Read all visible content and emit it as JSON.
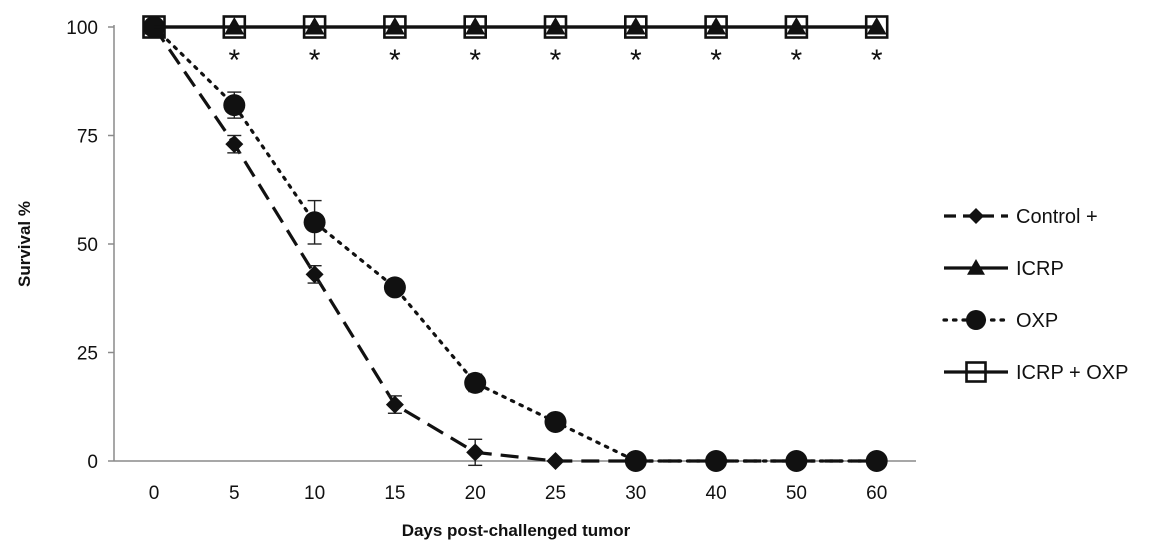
{
  "chart_data": {
    "type": "line",
    "title": "",
    "xlabel": "Days post-challenged tumor",
    "ylabel": "Survival %",
    "categories": [
      "0",
      "5",
      "10",
      "15",
      "20",
      "25",
      "30",
      "40",
      "50",
      "60"
    ],
    "ylim": [
      0,
      100
    ],
    "yticks": [
      "0",
      "25",
      "50",
      "75",
      "100"
    ],
    "grid": false,
    "legend_position": "right",
    "annotation_symbol": "*",
    "annotation_categories": [
      "5",
      "10",
      "15",
      "20",
      "25",
      "30",
      "40",
      "50",
      "60"
    ],
    "series": [
      {
        "name": "Control +",
        "marker": "diamond",
        "line_style": "dashed",
        "color": "#111111",
        "values": [
          100,
          73,
          43,
          13,
          2,
          0,
          0,
          0,
          0,
          0
        ],
        "errors": [
          0,
          2,
          2,
          2,
          3,
          0,
          0,
          0,
          0,
          0
        ]
      },
      {
        "name": "ICRP",
        "marker": "triangle",
        "line_style": "solid",
        "color": "#111111",
        "values": [
          100,
          100,
          100,
          100,
          100,
          100,
          100,
          100,
          100,
          100
        ],
        "errors": [
          0,
          0,
          0,
          0,
          0,
          0,
          0,
          0,
          0,
          0
        ]
      },
      {
        "name": "OXP",
        "marker": "circle",
        "line_style": "dotted",
        "color": "#111111",
        "values": [
          100,
          82,
          55,
          40,
          18,
          9,
          0,
          0,
          0,
          0
        ],
        "errors": [
          0,
          3,
          5,
          0,
          2,
          0,
          0,
          0,
          0,
          0
        ]
      },
      {
        "name": "ICRP + OXP",
        "marker": "square-open",
        "line_style": "solid",
        "color": "#111111",
        "values": [
          100,
          100,
          100,
          100,
          100,
          100,
          100,
          100,
          100,
          100
        ],
        "errors": [
          0,
          0,
          0,
          0,
          0,
          0,
          0,
          0,
          0,
          0
        ]
      }
    ]
  }
}
